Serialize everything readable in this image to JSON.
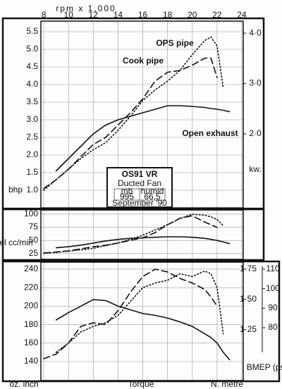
{
  "chart_data": [
    {
      "type": "line",
      "xlabel": "rpm x 1,000",
      "ylabel": "bhp",
      "y2label": "kw.",
      "x": [
        8,
        9,
        10,
        11,
        12,
        13,
        14,
        15,
        16,
        17,
        18,
        19,
        20,
        21,
        21.5,
        22,
        22.5,
        23
      ],
      "xlim": [
        7.77,
        24.11
      ],
      "xticks": [
        8,
        10,
        12,
        14,
        16,
        18,
        20,
        22,
        24
      ],
      "ylim": [
        0.5,
        5.8
      ],
      "yticks": [
        {
          "value": 1,
          "label": "1.0"
        },
        1.5,
        {
          "value": 2,
          "label": "2.0"
        },
        2.5,
        {
          "value": 3,
          "label": "3.0"
        },
        3.5,
        {
          "value": 4,
          "label": "4.0"
        },
        4.5,
        {
          "value": 5,
          "label": "5.0"
        },
        5.5
      ],
      "y2lim": [
        0.53,
        4.24
      ],
      "y2ticks": [
        {
          "value": 2,
          "label": "2·0"
        },
        {
          "value": 3,
          "label": "3·0"
        },
        {
          "value": 4,
          "label": "4·0"
        }
      ],
      "grid": true,
      "series": [
        {
          "name": "Open exhaust",
          "color": "#111111",
          "dash": "solid",
          "values": [
            null,
            1.55,
            1.9,
            2.25,
            2.6,
            2.85,
            3.0,
            3.1,
            3.2,
            3.3,
            3.4,
            3.4,
            3.38,
            3.35,
            3.32,
            3.3,
            3.27,
            3.23
          ]
        },
        {
          "name": "Cook pipe",
          "color": "#111111",
          "dash": "dashed",
          "values": [
            1.05,
            1.3,
            1.6,
            1.95,
            2.3,
            2.5,
            2.85,
            3.2,
            3.6,
            4.1,
            4.35,
            4.4,
            4.55,
            4.75,
            4.75,
            4.2,
            null,
            null
          ]
        },
        {
          "name": "OPS pipe",
          "color": "#111111",
          "dash": "dotted",
          "values": [
            1.0,
            1.3,
            1.6,
            1.9,
            2.15,
            2.35,
            2.7,
            3.1,
            3.55,
            3.85,
            4.1,
            4.4,
            4.85,
            5.25,
            5.35,
            5.1,
            3.9,
            null
          ]
        }
      ],
      "info_box": {
        "title": "OS91 VR",
        "subtitle": "Ducted Fan",
        "cells": [
          "mb",
          "humid",
          "995",
          "66.5"
        ],
        "date": "September '90"
      }
    },
    {
      "type": "line",
      "ylabel": "Fuel cc/min",
      "x": [
        8,
        9,
        10,
        11,
        12,
        13,
        14,
        15,
        16,
        17,
        18,
        19,
        20,
        21,
        21.5,
        22,
        22.5,
        23
      ],
      "xlim": [
        7.77,
        24.11
      ],
      "xticks": [
        8,
        10,
        12,
        14,
        16,
        18,
        20,
        22,
        24
      ],
      "ylim": [
        14,
        108
      ],
      "yticks": [
        25,
        50,
        75,
        100
      ],
      "grid": true,
      "series": [
        {
          "color": "#111111",
          "dash": "solid",
          "values": [
            null,
            36,
            38,
            41,
            45,
            49,
            52,
            54,
            55,
            56,
            57,
            57,
            56,
            54,
            52,
            50,
            47,
            44
          ]
        },
        {
          "color": "#111111",
          "dash": "dashed",
          "values": [
            26,
            28,
            30,
            34,
            38,
            41,
            45,
            50,
            55,
            65,
            80,
            92,
            97,
            85,
            80,
            75,
            null,
            null
          ]
        },
        {
          "color": "#111111",
          "dash": "dotted",
          "values": [
            26,
            27,
            30,
            32,
            35,
            40,
            45,
            52,
            60,
            70,
            80,
            92,
            100,
            98,
            95,
            90,
            78,
            null
          ]
        }
      ]
    },
    {
      "type": "line",
      "ylabel": "oz. inch",
      "xlabel": "Torque",
      "y2label": "N. metre",
      "y3label": "BMEP (psi)",
      "x": [
        8,
        9,
        10,
        11,
        12,
        13,
        14,
        15,
        16,
        17,
        18,
        19,
        20,
        21,
        21.5,
        22,
        22.5,
        23
      ],
      "xlim": [
        7.77,
        24.11
      ],
      "xticks": [
        8,
        10,
        12,
        14,
        16,
        18,
        20,
        22,
        24
      ],
      "ylim": [
        119.4,
        247.6
      ],
      "yticks": [
        140,
        160,
        180,
        200,
        220,
        240
      ],
      "grid": true,
      "y2lim": [
        0.831,
        1.808
      ],
      "y2ticks": [
        {
          "value": 1.25,
          "label": "1·25"
        },
        {
          "value": 1.5,
          "label": "1·50"
        },
        {
          "value": 1.75,
          "label": "1·75"
        }
      ],
      "y3lim": [
        52.9,
        113.6
      ],
      "y3ticks": [
        80,
        90,
        100,
        110
      ],
      "series": [
        {
          "color": "#111111",
          "dash": "solid",
          "values": [
            null,
            185,
            193,
            200,
            207,
            206,
            200,
            196,
            192,
            190,
            187,
            183,
            178,
            170,
            166,
            160,
            150,
            142
          ]
        },
        {
          "color": "#111111",
          "dash": "dashed",
          "values": [
            143,
            148,
            160,
            178,
            182,
            180,
            195,
            215,
            232,
            240,
            237,
            230,
            225,
            218,
            210,
            200,
            null,
            null
          ]
        },
        {
          "color": "#111111",
          "dash": "dotted",
          "values": [
            null,
            150,
            160,
            172,
            178,
            182,
            190,
            205,
            220,
            225,
            228,
            235,
            232,
            238,
            235,
            220,
            170,
            null
          ]
        }
      ]
    }
  ]
}
